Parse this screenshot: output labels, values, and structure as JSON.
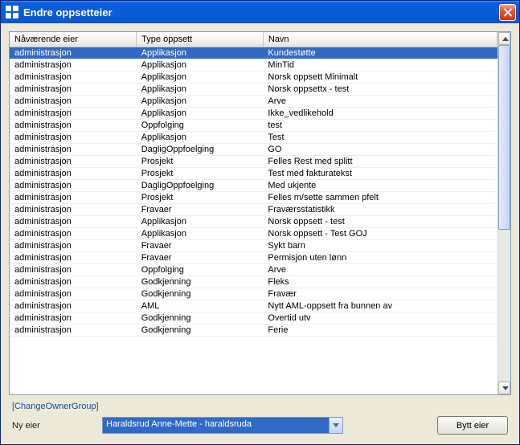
{
  "window": {
    "title": "Endre oppsetteier",
    "titlebar_gradient": [
      "#3a95ff",
      "#0a5dd8"
    ],
    "close_button_color": "#e7542f"
  },
  "table": {
    "headers": [
      "Nåværende eier",
      "Type oppsett",
      "Navn"
    ],
    "column_widths": [
      "26%",
      "26%",
      "48%"
    ],
    "header_bg": "#f2f2ee",
    "selected_bg": "#316ac5",
    "selected_fg": "#ffffff",
    "selected_index": 0,
    "rows": [
      [
        "administrasjon",
        "Applikasjon",
        "Kundestøtte"
      ],
      [
        "administrasjon",
        "Applikasjon",
        "MinTid"
      ],
      [
        "administrasjon",
        "Applikasjon",
        "Norsk oppsett Minimalt"
      ],
      [
        "administrasjon",
        "Applikasjon",
        "Norsk oppsettx - test"
      ],
      [
        "administrasjon",
        "Applikasjon",
        "Arve"
      ],
      [
        "administrasjon",
        "Applikasjon",
        "Ikke_vedlikehold"
      ],
      [
        "administrasjon",
        "Oppfolging",
        "test"
      ],
      [
        "administrasjon",
        "Applikasjon",
        "Test"
      ],
      [
        "administrasjon",
        "DagligOppfoelging",
        "GO"
      ],
      [
        "administrasjon",
        "Prosjekt",
        "Felles Rest med splitt"
      ],
      [
        "administrasjon",
        "Prosjekt",
        "Test med fakturatekst"
      ],
      [
        "administrasjon",
        "DagligOppfoelging",
        "Med ukjente"
      ],
      [
        "administrasjon",
        "Prosjekt",
        "Felles m/sette sammen pfelt"
      ],
      [
        "administrasjon",
        "Fravaer",
        "Fraværsstatistikk"
      ],
      [
        "administrasjon",
        "Applikasjon",
        "Norsk oppsett - test"
      ],
      [
        "administrasjon",
        "Applikasjon",
        "Norsk oppsett - Test GOJ"
      ],
      [
        "administrasjon",
        "Fravaer",
        "Sykt barn"
      ],
      [
        "administrasjon",
        "Fravaer",
        "Permisjon uten lønn"
      ],
      [
        "administrasjon",
        "Oppfolging",
        "Arve"
      ],
      [
        "administrasjon",
        "Godkjenning",
        "Fleks"
      ],
      [
        "administrasjon",
        "Godkjenning",
        "Fravær"
      ],
      [
        "administrasjon",
        "AML",
        "Nytt AML-oppsett fra bunnen av"
      ],
      [
        "administrasjon",
        "Godkjenning",
        "Overtid utv"
      ],
      [
        "administrasjon",
        "Godkjenning",
        "Ferie"
      ]
    ]
  },
  "link": {
    "label": "[ChangeOwnerGroup]",
    "color": "#1a4eab"
  },
  "form": {
    "new_owner_label": "Ny eier",
    "combo_selected": "Haraldsrud Anne-Mette - haraldsruda",
    "combo_selection_bg": "#316ac5",
    "submit_label": "Bytt eier"
  }
}
